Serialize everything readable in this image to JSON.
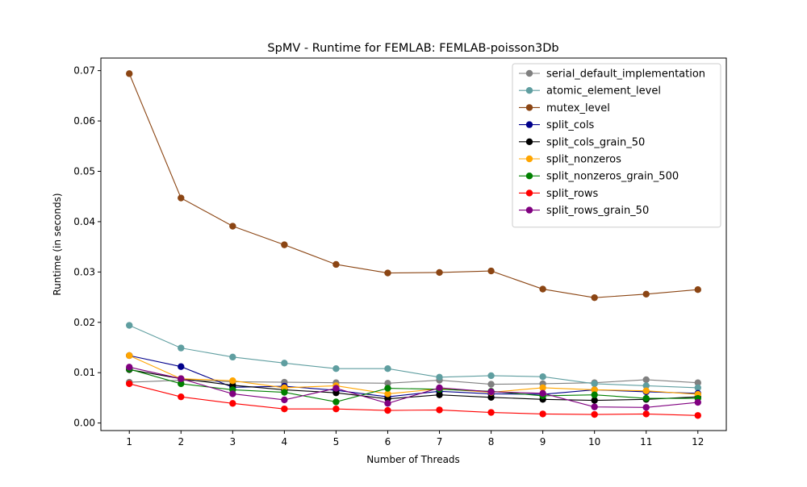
{
  "chart_data": {
    "type": "line",
    "title": "SpMV - Runtime for FEMLAB: FEMLAB-poisson3Db",
    "xlabel": "Number of Threads",
    "ylabel": "Runtime (in seconds)",
    "x": [
      1,
      2,
      3,
      4,
      5,
      6,
      7,
      8,
      9,
      10,
      11,
      12
    ],
    "xlim": [
      0.45,
      12.55
    ],
    "ylim": [
      -0.0015,
      0.0725
    ],
    "xticks": [
      "1",
      "2",
      "3",
      "4",
      "5",
      "6",
      "7",
      "8",
      "9",
      "10",
      "11",
      "12"
    ],
    "yticks": [
      "0.00",
      "0.01",
      "0.02",
      "0.03",
      "0.04",
      "0.05",
      "0.06",
      "0.07"
    ],
    "legend_position": "top-right",
    "grid": false,
    "series": [
      {
        "name": "serial_default_implementation",
        "color": "#808080",
        "values": [
          0.0081,
          0.0085,
          0.0082,
          0.0081,
          0.008,
          0.0079,
          0.0085,
          0.0077,
          0.0078,
          0.008,
          0.0086,
          0.008
        ]
      },
      {
        "name": "atomic_element_level",
        "color": "#5f9ea0",
        "values": [
          0.0194,
          0.0149,
          0.0131,
          0.0119,
          0.0108,
          0.0108,
          0.0091,
          0.0094,
          0.0092,
          0.0078,
          0.0074,
          0.007
        ]
      },
      {
        "name": "mutex_level",
        "color": "#8b4513",
        "values": [
          0.0694,
          0.0447,
          0.0391,
          0.0354,
          0.0315,
          0.0298,
          0.0299,
          0.0302,
          0.0266,
          0.0249,
          0.0256,
          0.0265
        ]
      },
      {
        "name": "split_cols",
        "color": "#00008b",
        "values": [
          0.0134,
          0.0112,
          0.0071,
          0.0073,
          0.0065,
          0.0052,
          0.0063,
          0.0058,
          0.0057,
          0.0066,
          0.0062,
          0.0059
        ]
      },
      {
        "name": "split_cols_grain_50",
        "color": "#000000",
        "values": [
          0.0106,
          0.0088,
          0.0075,
          0.0066,
          0.006,
          0.0048,
          0.0056,
          0.0051,
          0.0047,
          0.0045,
          0.0047,
          0.0052
        ]
      },
      {
        "name": "split_nonzeros",
        "color": "#ffa500",
        "values": [
          0.0134,
          0.0088,
          0.0084,
          0.007,
          0.0074,
          0.0058,
          0.0068,
          0.0061,
          0.007,
          0.0066,
          0.0064,
          0.0057
        ]
      },
      {
        "name": "split_nonzeros_grain_500",
        "color": "#008000",
        "values": [
          0.0107,
          0.0078,
          0.0066,
          0.0061,
          0.0042,
          0.0069,
          0.0067,
          0.0063,
          0.0054,
          0.0056,
          0.0049,
          0.0049
        ]
      },
      {
        "name": "split_rows",
        "color": "#ff0000",
        "values": [
          0.0078,
          0.0052,
          0.0039,
          0.0028,
          0.0028,
          0.0025,
          0.0026,
          0.0021,
          0.0018,
          0.0017,
          0.0018,
          0.0015
        ]
      },
      {
        "name": "split_rows_grain_50",
        "color": "#800080",
        "values": [
          0.0111,
          0.0088,
          0.0058,
          0.0046,
          0.0069,
          0.0039,
          0.007,
          0.0062,
          0.0059,
          0.0032,
          0.0031,
          0.0041
        ]
      }
    ]
  }
}
